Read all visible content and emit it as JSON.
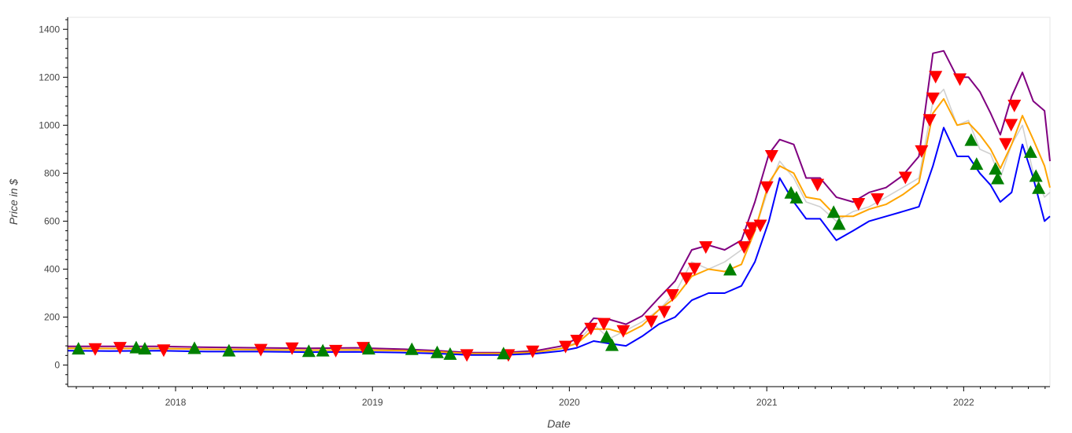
{
  "chart_data": {
    "type": "line",
    "xlabel": "Date",
    "ylabel": "Price in $",
    "xlim": [
      "2017-06-15",
      "2022-06-10"
    ],
    "ylim": [
      -90,
      1450
    ],
    "grid": false,
    "x_tick_labels": [
      "2018",
      "2019",
      "2020",
      "2021",
      "2022"
    ],
    "x_tick_dates": [
      "2018-01-01",
      "2019-01-01",
      "2020-01-01",
      "2021-01-01",
      "2022-01-01"
    ],
    "y_tick_labels": [
      "0",
      "200",
      "400",
      "600",
      "800",
      "1000",
      "1200",
      "1400"
    ],
    "y_tick_values": [
      0,
      200,
      400,
      600,
      800,
      1000,
      1200,
      1400
    ],
    "colors": {
      "close": "#d0d0d0",
      "upper_band": "#800080",
      "middle_band": "#ffa500",
      "lower_band": "#0000ff",
      "sell_marker": "#ff0000",
      "buy_marker": "#008000",
      "axis": "#000000"
    },
    "series": [
      {
        "key": "close",
        "x": [
          "2017-06-15",
          "2017-09-01",
          "2017-12-01",
          "2018-03-01",
          "2018-06-01",
          "2018-09-01",
          "2018-12-01",
          "2019-03-01",
          "2019-05-01",
          "2019-07-01",
          "2019-09-01",
          "2019-11-01",
          "2019-12-15",
          "2020-01-15",
          "2020-02-15",
          "2020-03-15",
          "2020-04-15",
          "2020-05-15",
          "2020-06-15",
          "2020-07-15",
          "2020-08-15",
          "2020-09-15",
          "2020-10-15",
          "2020-11-15",
          "2020-12-10",
          "2021-01-05",
          "2021-01-25",
          "2021-02-20",
          "2021-03-15",
          "2021-04-10",
          "2021-05-10",
          "2021-06-10",
          "2021-07-10",
          "2021-08-10",
          "2021-09-10",
          "2021-10-10",
          "2021-11-05",
          "2021-11-25",
          "2021-12-20",
          "2022-01-10",
          "2022-01-31",
          "2022-02-20",
          "2022-03-10",
          "2022-03-31",
          "2022-04-20",
          "2022-05-10",
          "2022-05-31",
          "2022-06-10"
        ],
        "y": [
          72,
          68,
          70,
          66,
          63,
          62,
          64,
          60,
          55,
          46,
          48,
          54,
          70,
          95,
          170,
          110,
          145,
          180,
          230,
          300,
          430,
          400,
          430,
          480,
          560,
          740,
          850,
          780,
          680,
          660,
          600,
          640,
          660,
          700,
          740,
          780,
          1100,
          1150,
          1000,
          1020,
          900,
          880,
          780,
          920,
          1000,
          800,
          700,
          720
        ]
      },
      {
        "key": "upper_band",
        "x": [
          "2017-06-15",
          "2017-09-01",
          "2017-12-01",
          "2018-03-01",
          "2018-06-01",
          "2018-09-01",
          "2018-12-01",
          "2019-03-01",
          "2019-05-01",
          "2019-07-01",
          "2019-09-01",
          "2019-11-01",
          "2019-12-15",
          "2020-01-15",
          "2020-02-15",
          "2020-03-15",
          "2020-04-15",
          "2020-05-15",
          "2020-06-15",
          "2020-07-15",
          "2020-08-15",
          "2020-09-15",
          "2020-10-15",
          "2020-11-15",
          "2020-12-10",
          "2021-01-05",
          "2021-01-25",
          "2021-02-20",
          "2021-03-15",
          "2021-04-10",
          "2021-05-10",
          "2021-06-10",
          "2021-07-10",
          "2021-08-10",
          "2021-09-10",
          "2021-10-10",
          "2021-11-05",
          "2021-11-25",
          "2021-12-20",
          "2022-01-10",
          "2022-01-31",
          "2022-02-20",
          "2022-03-10",
          "2022-03-31",
          "2022-04-20",
          "2022-05-10",
          "2022-05-31",
          "2022-06-10"
        ],
        "y": [
          78,
          78,
          78,
          74,
          72,
          70,
          72,
          66,
          60,
          52,
          52,
          60,
          78,
          110,
          195,
          190,
          170,
          205,
          280,
          350,
          480,
          500,
          480,
          520,
          680,
          880,
          940,
          920,
          780,
          780,
          700,
          680,
          720,
          740,
          790,
          870,
          1300,
          1310,
          1200,
          1200,
          1140,
          1050,
          960,
          1120,
          1220,
          1100,
          1060,
          850
        ]
      },
      {
        "key": "middle_band",
        "x": [
          "2017-06-15",
          "2017-09-01",
          "2017-12-01",
          "2018-03-01",
          "2018-06-01",
          "2018-09-01",
          "2018-12-01",
          "2019-03-01",
          "2019-05-01",
          "2019-07-01",
          "2019-09-01",
          "2019-11-01",
          "2019-12-15",
          "2020-01-15",
          "2020-02-15",
          "2020-03-15",
          "2020-04-15",
          "2020-05-15",
          "2020-06-15",
          "2020-07-15",
          "2020-08-15",
          "2020-09-15",
          "2020-10-15",
          "2020-11-15",
          "2020-12-10",
          "2021-01-05",
          "2021-01-25",
          "2021-02-20",
          "2021-03-15",
          "2021-04-10",
          "2021-05-10",
          "2021-06-10",
          "2021-07-10",
          "2021-08-10",
          "2021-09-10",
          "2021-10-10",
          "2021-11-05",
          "2021-11-25",
          "2021-12-20",
          "2022-01-10",
          "2022-01-31",
          "2022-02-20",
          "2022-03-10",
          "2022-03-31",
          "2022-04-20",
          "2022-05-10",
          "2022-05-31",
          "2022-06-10"
        ],
        "y": [
          70,
          69,
          69,
          66,
          64,
          62,
          63,
          60,
          55,
          48,
          48,
          54,
          68,
          90,
          150,
          150,
          130,
          165,
          230,
          280,
          370,
          400,
          390,
          420,
          560,
          760,
          830,
          800,
          700,
          690,
          620,
          620,
          650,
          670,
          710,
          760,
          1050,
          1110,
          1000,
          1010,
          960,
          900,
          820,
          920,
          1040,
          940,
          830,
          740
        ]
      },
      {
        "key": "lower_band",
        "x": [
          "2017-06-15",
          "2017-09-01",
          "2017-12-01",
          "2018-03-01",
          "2018-06-01",
          "2018-09-01",
          "2018-12-01",
          "2019-03-01",
          "2019-05-01",
          "2019-07-01",
          "2019-09-01",
          "2019-11-01",
          "2019-12-15",
          "2020-01-15",
          "2020-02-15",
          "2020-03-15",
          "2020-04-15",
          "2020-05-15",
          "2020-06-15",
          "2020-07-15",
          "2020-08-15",
          "2020-09-15",
          "2020-10-15",
          "2020-11-15",
          "2020-12-10",
          "2021-01-05",
          "2021-01-25",
          "2021-02-20",
          "2021-03-15",
          "2021-04-10",
          "2021-05-10",
          "2021-06-10",
          "2021-07-10",
          "2021-08-10",
          "2021-09-10",
          "2021-10-10",
          "2021-11-05",
          "2021-11-25",
          "2021-12-20",
          "2022-01-10",
          "2022-01-31",
          "2022-02-20",
          "2022-03-10",
          "2022-03-31",
          "2022-04-20",
          "2022-05-10",
          "2022-05-31",
          "2022-06-10"
        ],
        "y": [
          60,
          58,
          60,
          56,
          56,
          54,
          55,
          52,
          48,
          42,
          42,
          48,
          58,
          72,
          100,
          90,
          80,
          120,
          170,
          200,
          270,
          300,
          300,
          330,
          430,
          600,
          780,
          680,
          610,
          610,
          520,
          560,
          600,
          620,
          640,
          660,
          830,
          990,
          870,
          870,
          800,
          750,
          680,
          720,
          920,
          780,
          600,
          620
        ]
      }
    ],
    "sell_signals": {
      "x": [
        "2017-08-05",
        "2017-09-20",
        "2017-12-10",
        "2018-06-08",
        "2018-08-05",
        "2018-10-25",
        "2018-12-15",
        "2019-06-25",
        "2019-09-10",
        "2019-10-25",
        "2019-12-25",
        "2020-01-15",
        "2020-02-10",
        "2020-03-05",
        "2020-04-10",
        "2020-06-01",
        "2020-06-25",
        "2020-07-10",
        "2020-08-05",
        "2020-08-20",
        "2020-09-10",
        "2020-11-20",
        "2020-11-30",
        "2020-12-05",
        "2020-12-20",
        "2021-01-01",
        "2021-01-10",
        "2021-04-05",
        "2021-06-20",
        "2021-07-25",
        "2021-09-15",
        "2021-10-15",
        "2021-10-30",
        "2021-11-05",
        "2021-11-10",
        "2021-12-25",
        "2022-03-20",
        "2022-03-30",
        "2022-04-05"
      ],
      "y": [
        65,
        70,
        60,
        62,
        68,
        58,
        70,
        40,
        40,
        55,
        75,
        100,
        150,
        170,
        140,
        180,
        220,
        290,
        360,
        400,
        490,
        490,
        540,
        570,
        580,
        740,
        870,
        750,
        670,
        690,
        780,
        890,
        1020,
        1110,
        1200,
        1190,
        920,
        1000,
        1080
      ]
    },
    "buy_signals": {
      "x": [
        "2017-07-05",
        "2017-10-20",
        "2017-11-05",
        "2018-02-05",
        "2018-04-10",
        "2018-09-05",
        "2018-10-01",
        "2018-12-25",
        "2019-03-15",
        "2019-05-01",
        "2019-05-25",
        "2019-09-01",
        "2020-03-10",
        "2020-03-20",
        "2020-10-25",
        "2021-02-15",
        "2021-02-25",
        "2021-05-05",
        "2021-05-15",
        "2022-01-15",
        "2022-01-25",
        "2022-03-01",
        "2022-03-05",
        "2022-05-05",
        "2022-05-15",
        "2022-05-20"
      ],
      "y": [
        70,
        75,
        70,
        72,
        62,
        60,
        62,
        70,
        68,
        55,
        48,
        50,
        120,
        85,
        400,
        720,
        700,
        640,
        590,
        940,
        840,
        820,
        780,
        890,
        790,
        740
      ]
    }
  }
}
